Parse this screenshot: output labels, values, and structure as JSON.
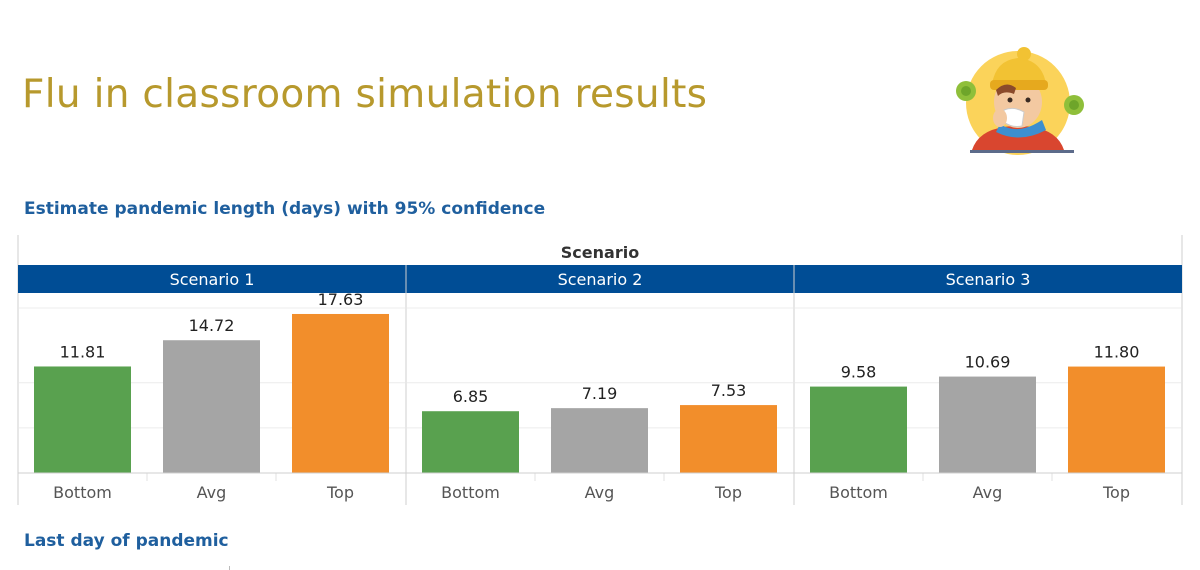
{
  "title": "Flu in classroom simulation results",
  "subtitle": "Estimate pandemic length (days) with 95% confidence",
  "next_section": "Last day of pandemic",
  "illustration_icon": "sick-child-sneezing-icon",
  "chart_data": {
    "type": "bar",
    "title": "",
    "column_header": "Scenario",
    "panels": [
      {
        "name": "Scenario 1",
        "categories": [
          "Bottom",
          "Avg",
          "Top"
        ],
        "values": [
          11.81,
          14.72,
          17.63
        ]
      },
      {
        "name": "Scenario 2",
        "categories": [
          "Bottom",
          "Avg",
          "Top"
        ],
        "values": [
          6.85,
          7.19,
          7.53
        ]
      },
      {
        "name": "Scenario 3",
        "categories": [
          "Bottom",
          "Avg",
          "Top"
        ],
        "values": [
          9.58,
          10.69,
          11.8
        ]
      }
    ],
    "ylim": [
      0,
      20
    ],
    "colors": {
      "Bottom": "#59a14f",
      "Avg": "#a5a5a5",
      "Top": "#f28e2b"
    },
    "header_color": "#004d95",
    "grid": true,
    "xlabel": "",
    "ylabel": ""
  }
}
